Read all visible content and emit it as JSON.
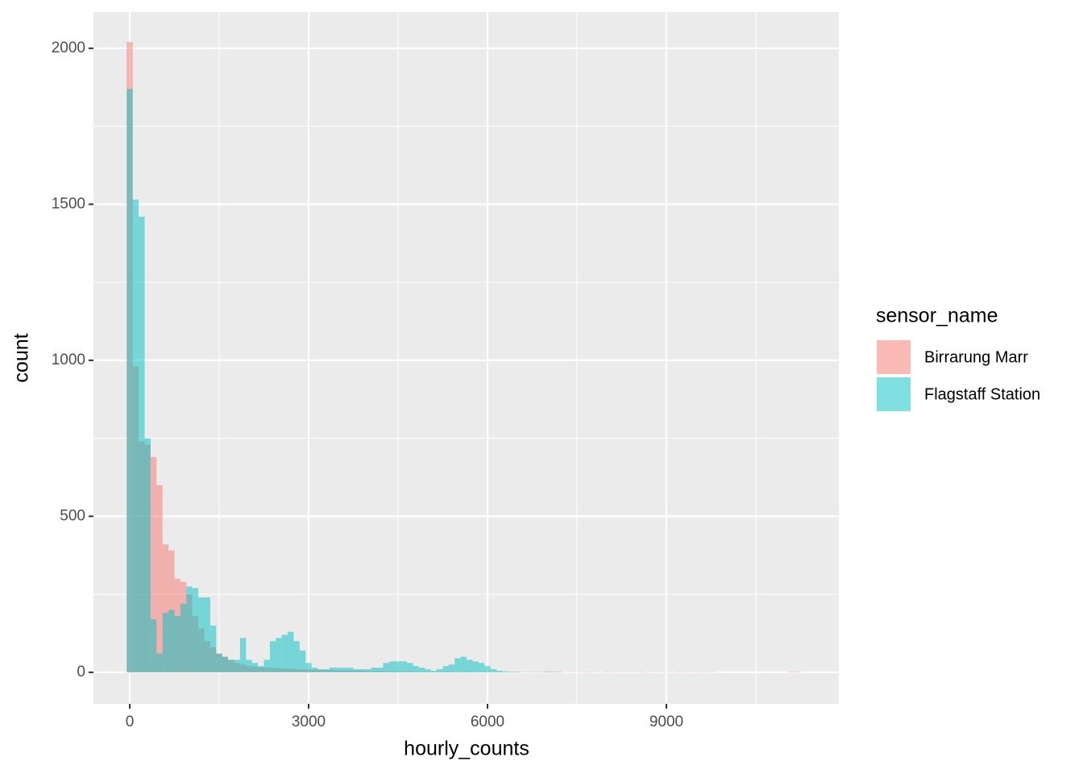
{
  "chart_data": {
    "type": "histogram",
    "x_label": "hourly_counts",
    "y_label": "count",
    "legend_title": "sensor_name",
    "legend_position": "right",
    "bins": [
      -50,
      50,
      150,
      250,
      350,
      450,
      550,
      650,
      750,
      850,
      950,
      1050,
      1150,
      1250,
      1350,
      1450,
      1550,
      1650,
      1750,
      1850,
      1950,
      2050,
      2150,
      2250,
      2350,
      2450,
      2550,
      2650,
      2750,
      2850,
      2950,
      3050,
      3150,
      3250,
      3350,
      3450,
      3550,
      3650,
      3750,
      3850,
      3950,
      4050,
      4150,
      4250,
      4350,
      4450,
      4550,
      4650,
      4750,
      4850,
      4950,
      5050,
      5150,
      5250,
      5350,
      5450,
      5550,
      5650,
      5750,
      5850,
      5950,
      6050,
      6150,
      6250,
      6350,
      6450,
      6550,
      6650,
      6750,
      6850,
      6950,
      7050,
      7150,
      7250,
      7350,
      7450,
      7550,
      7650,
      7750,
      7850,
      7950,
      8050,
      8150,
      8250,
      8350,
      8450,
      8550,
      8650,
      8750,
      8850,
      8950,
      9050,
      9150,
      9250,
      9350,
      9450,
      9550,
      9650,
      9750,
      9850,
      9950,
      10050,
      10150,
      10250,
      10350,
      10450,
      10550,
      10650,
      10750,
      10850,
      10950,
      11050,
      11150,
      11250,
      11350
    ],
    "series": [
      {
        "name": "Birrarung Marr",
        "color": "#F8766D",
        "opacity": 0.5,
        "values": [
          2020,
          980,
          740,
          730,
          690,
          600,
          410,
          390,
          300,
          290,
          250,
          180,
          140,
          100,
          80,
          60,
          50,
          40,
          30,
          25,
          20,
          18,
          16,
          15,
          14,
          13,
          12,
          11,
          10,
          10,
          9,
          8,
          8,
          7,
          7,
          6,
          6,
          5,
          5,
          5,
          4,
          4,
          4,
          3,
          3,
          3,
          3,
          3,
          2,
          2,
          2,
          2,
          2,
          2,
          2,
          2,
          2,
          2,
          1,
          1,
          1,
          1,
          1,
          1,
          1,
          2,
          1,
          1,
          1,
          1,
          3,
          2,
          3,
          1,
          1,
          1,
          1,
          2,
          1,
          1,
          2,
          1,
          1,
          1,
          1,
          1,
          2,
          1,
          1,
          1,
          1,
          1,
          2,
          1,
          1,
          1,
          2,
          1,
          1,
          0,
          0,
          0,
          0,
          0,
          0,
          0,
          0,
          0,
          0,
          0,
          0,
          2,
          2,
          0
        ]
      },
      {
        "name": "Flagstaff Station",
        "color": "#00BFC4",
        "opacity": 0.5,
        "values": [
          1870,
          1515,
          1460,
          750,
          170,
          60,
          190,
          200,
          180,
          220,
          275,
          270,
          240,
          240,
          150,
          60,
          50,
          40,
          40,
          110,
          40,
          30,
          20,
          40,
          100,
          110,
          120,
          130,
          100,
          70,
          30,
          15,
          10,
          10,
          15,
          15,
          15,
          15,
          10,
          10,
          10,
          15,
          15,
          30,
          35,
          35,
          35,
          30,
          20,
          15,
          10,
          5,
          10,
          20,
          25,
          45,
          50,
          40,
          35,
          30,
          20,
          10,
          5,
          3,
          2,
          2,
          1,
          1,
          1,
          1,
          1,
          1,
          0,
          0,
          0,
          0,
          0,
          0,
          0,
          0,
          0,
          0,
          0,
          0,
          0,
          0,
          0,
          0,
          0,
          0,
          0,
          0,
          0,
          0,
          0,
          0,
          0,
          0,
          0,
          0,
          0,
          0,
          0,
          0,
          0,
          0,
          0,
          0,
          0,
          0,
          0,
          0,
          0,
          0
        ]
      }
    ],
    "xlim": [
      -608,
      11892
    ],
    "ylim": [
      -101,
      2116
    ],
    "xticks": [
      0,
      3000,
      6000,
      9000
    ],
    "yticks": [
      0,
      500,
      1000,
      1500,
      2000
    ],
    "x_minor_grid": [
      1500,
      4500,
      7500,
      10500
    ],
    "y_minor_grid": [
      250,
      750,
      1250,
      1750
    ],
    "grid": true
  }
}
